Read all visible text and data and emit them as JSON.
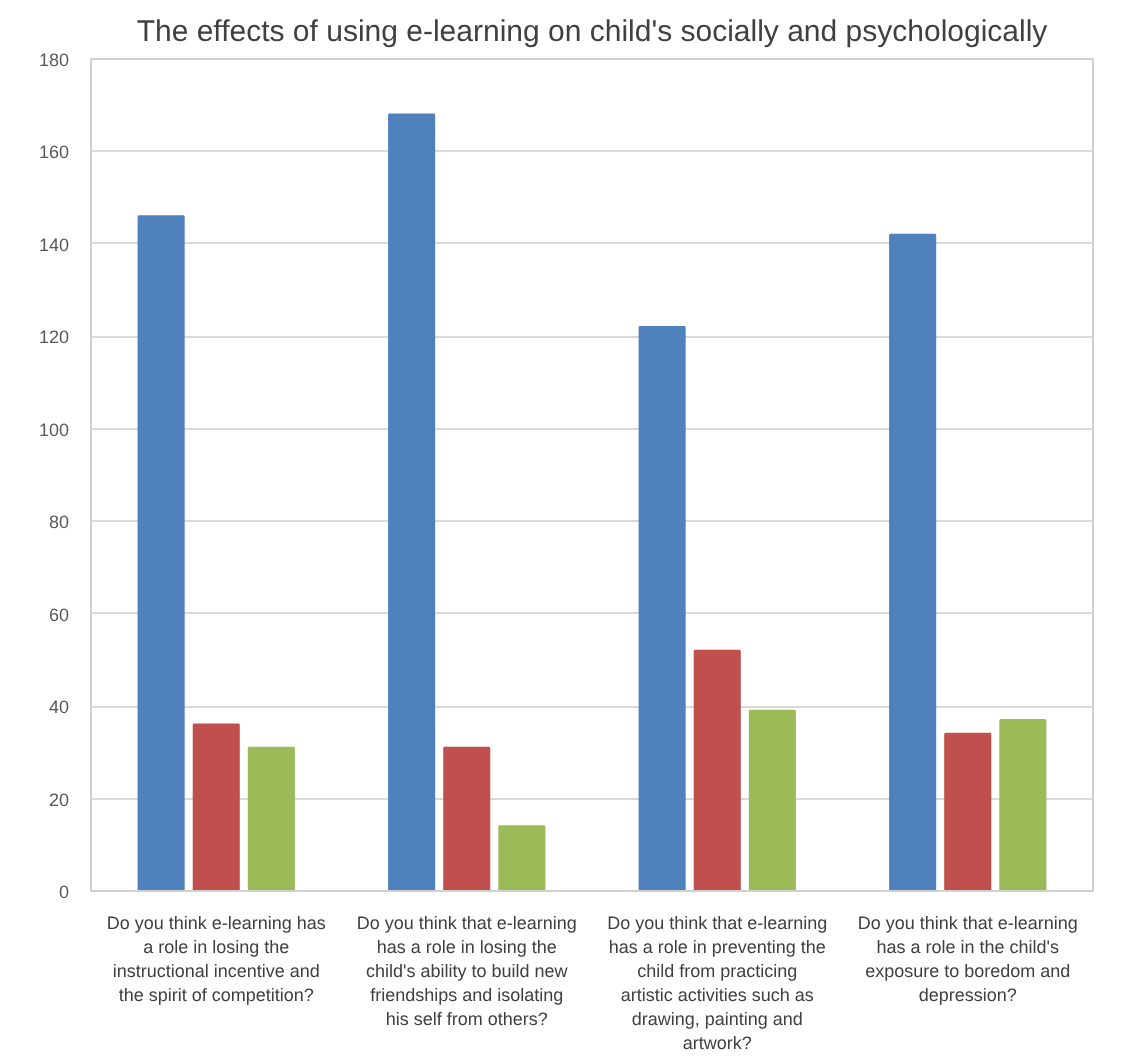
{
  "chart_data": {
    "type": "bar",
    "title": "The effects of using e-learning on child's socially and psychologically",
    "categories": [
      "Do you think e-learning has a role in losing the instructional incentive and the spirit of competition?",
      "Do you think that e-learning has a role in losing the child's ability to build new friendships and isolating his self from others?",
      "Do you think that e-learning has a role in preventing the child from practicing artistic activities such as drawing, painting and artwork?",
      "Do you think that e-learning has a role in the child's exposure to boredom and depression?"
    ],
    "series": [
      {
        "color": "#4f81bd",
        "values": [
          146,
          168,
          122,
          142
        ]
      },
      {
        "color": "#c0504d",
        "values": [
          36,
          31,
          52,
          34
        ]
      },
      {
        "color": "#9bbb59",
        "values": [
          31,
          14,
          39,
          37
        ]
      }
    ],
    "ylim": [
      0,
      180
    ],
    "yticks": [
      0,
      20,
      40,
      60,
      80,
      100,
      120,
      140,
      160,
      180
    ],
    "grid": "y"
  }
}
